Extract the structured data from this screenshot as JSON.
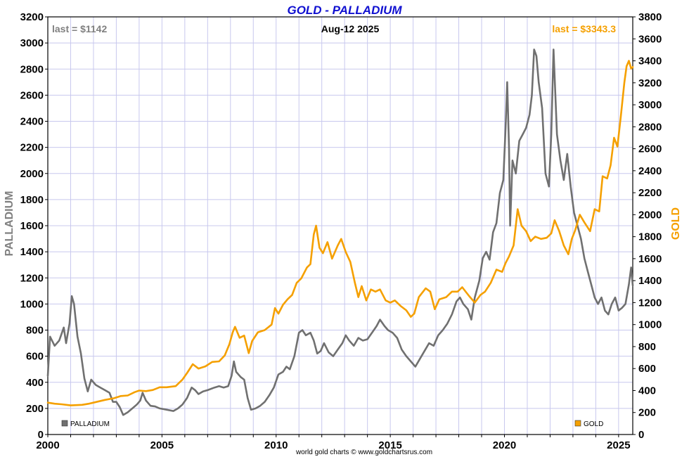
{
  "chart_data": {
    "type": "line",
    "title": "GOLD - PALLADIUM",
    "date_label": "Aug-12  2025",
    "credit": "world gold charts © www.goldchartsrus.com",
    "grid": true,
    "x_axis": {
      "range": [
        2000,
        2025.62
      ],
      "ticks": [
        {
          "value": 2000,
          "label": "2000"
        },
        {
          "value": 2005,
          "label": "2005"
        },
        {
          "value": 2010,
          "label": "2010"
        },
        {
          "value": 2015,
          "label": "2015"
        },
        {
          "value": 2020,
          "label": "2020"
        },
        {
          "value": 2025,
          "label": "2025"
        }
      ]
    },
    "y_left": {
      "label": "PALLADIUM",
      "range": [
        0,
        3200
      ],
      "ticks": [
        0,
        200,
        400,
        600,
        800,
        1000,
        1200,
        1400,
        1600,
        1800,
        2000,
        2200,
        2400,
        2600,
        2800,
        3000,
        3200
      ]
    },
    "y_right": {
      "label": "GOLD",
      "range": [
        0,
        3800
      ],
      "ticks": [
        0,
        200,
        400,
        600,
        800,
        1000,
        1200,
        1400,
        1600,
        1800,
        2000,
        2200,
        2400,
        2600,
        2800,
        3000,
        3200,
        3400,
        3600,
        3800
      ]
    },
    "series": [
      {
        "name": "PALLADIUM",
        "axis": "left",
        "color": "#707070",
        "last_label": "last = $1142",
        "points": [
          [
            2000.0,
            450
          ],
          [
            2000.1,
            750
          ],
          [
            2000.3,
            680
          ],
          [
            2000.5,
            720
          ],
          [
            2000.7,
            820
          ],
          [
            2000.8,
            700
          ],
          [
            2000.95,
            850
          ],
          [
            2001.05,
            1060
          ],
          [
            2001.15,
            1000
          ],
          [
            2001.3,
            750
          ],
          [
            2001.45,
            620
          ],
          [
            2001.6,
            430
          ],
          [
            2001.75,
            330
          ],
          [
            2001.9,
            420
          ],
          [
            2002.1,
            380
          ],
          [
            2002.3,
            360
          ],
          [
            2002.5,
            340
          ],
          [
            2002.7,
            320
          ],
          [
            2002.85,
            250
          ],
          [
            2003.0,
            250
          ],
          [
            2003.15,
            210
          ],
          [
            2003.3,
            150
          ],
          [
            2003.5,
            170
          ],
          [
            2003.7,
            200
          ],
          [
            2003.9,
            230
          ],
          [
            2004.05,
            260
          ],
          [
            2004.15,
            320
          ],
          [
            2004.3,
            260
          ],
          [
            2004.5,
            220
          ],
          [
            2004.7,
            215
          ],
          [
            2004.9,
            200
          ],
          [
            2005.2,
            190
          ],
          [
            2005.5,
            180
          ],
          [
            2005.7,
            200
          ],
          [
            2005.9,
            230
          ],
          [
            2006.1,
            280
          ],
          [
            2006.3,
            360
          ],
          [
            2006.45,
            340
          ],
          [
            2006.6,
            310
          ],
          [
            2006.8,
            330
          ],
          [
            2007.0,
            340
          ],
          [
            2007.3,
            360
          ],
          [
            2007.5,
            370
          ],
          [
            2007.7,
            360
          ],
          [
            2007.9,
            370
          ],
          [
            2008.05,
            450
          ],
          [
            2008.15,
            560
          ],
          [
            2008.25,
            480
          ],
          [
            2008.45,
            440
          ],
          [
            2008.6,
            420
          ],
          [
            2008.75,
            280
          ],
          [
            2008.9,
            190
          ],
          [
            2009.1,
            200
          ],
          [
            2009.3,
            220
          ],
          [
            2009.5,
            250
          ],
          [
            2009.7,
            300
          ],
          [
            2009.9,
            360
          ],
          [
            2010.1,
            460
          ],
          [
            2010.3,
            480
          ],
          [
            2010.45,
            520
          ],
          [
            2010.6,
            500
          ],
          [
            2010.8,
            600
          ],
          [
            2011.0,
            780
          ],
          [
            2011.15,
            800
          ],
          [
            2011.3,
            760
          ],
          [
            2011.5,
            780
          ],
          [
            2011.65,
            720
          ],
          [
            2011.8,
            620
          ],
          [
            2011.95,
            640
          ],
          [
            2012.1,
            700
          ],
          [
            2012.3,
            630
          ],
          [
            2012.5,
            600
          ],
          [
            2012.7,
            650
          ],
          [
            2012.9,
            700
          ],
          [
            2013.05,
            760
          ],
          [
            2013.2,
            720
          ],
          [
            2013.4,
            680
          ],
          [
            2013.6,
            740
          ],
          [
            2013.8,
            720
          ],
          [
            2014.0,
            730
          ],
          [
            2014.2,
            780
          ],
          [
            2014.4,
            830
          ],
          [
            2014.55,
            880
          ],
          [
            2014.75,
            830
          ],
          [
            2014.9,
            800
          ],
          [
            2015.1,
            780
          ],
          [
            2015.3,
            740
          ],
          [
            2015.5,
            650
          ],
          [
            2015.7,
            600
          ],
          [
            2015.9,
            560
          ],
          [
            2016.1,
            520
          ],
          [
            2016.3,
            580
          ],
          [
            2016.5,
            640
          ],
          [
            2016.7,
            700
          ],
          [
            2016.9,
            680
          ],
          [
            2017.1,
            760
          ],
          [
            2017.3,
            800
          ],
          [
            2017.5,
            850
          ],
          [
            2017.7,
            920
          ],
          [
            2017.9,
            1020
          ],
          [
            2018.05,
            1050
          ],
          [
            2018.2,
            1000
          ],
          [
            2018.4,
            960
          ],
          [
            2018.55,
            880
          ],
          [
            2018.7,
            1050
          ],
          [
            2018.9,
            1180
          ],
          [
            2019.05,
            1350
          ],
          [
            2019.2,
            1400
          ],
          [
            2019.35,
            1340
          ],
          [
            2019.5,
            1550
          ],
          [
            2019.65,
            1620
          ],
          [
            2019.8,
            1850
          ],
          [
            2019.95,
            1950
          ],
          [
            2020.05,
            2350
          ],
          [
            2020.12,
            2700
          ],
          [
            2020.2,
            2200
          ],
          [
            2020.25,
            1600
          ],
          [
            2020.35,
            2100
          ],
          [
            2020.5,
            2000
          ],
          [
            2020.65,
            2250
          ],
          [
            2020.8,
            2300
          ],
          [
            2020.95,
            2350
          ],
          [
            2021.1,
            2450
          ],
          [
            2021.2,
            2600
          ],
          [
            2021.3,
            2950
          ],
          [
            2021.4,
            2900
          ],
          [
            2021.5,
            2700
          ],
          [
            2021.65,
            2500
          ],
          [
            2021.8,
            2000
          ],
          [
            2021.95,
            1900
          ],
          [
            2022.05,
            2300
          ],
          [
            2022.15,
            2950
          ],
          [
            2022.3,
            2300
          ],
          [
            2022.45,
            2100
          ],
          [
            2022.6,
            1950
          ],
          [
            2022.75,
            2150
          ],
          [
            2022.9,
            1900
          ],
          [
            2023.05,
            1700
          ],
          [
            2023.2,
            1600
          ],
          [
            2023.35,
            1500
          ],
          [
            2023.5,
            1350
          ],
          [
            2023.65,
            1250
          ],
          [
            2023.8,
            1150
          ],
          [
            2023.95,
            1050
          ],
          [
            2024.1,
            1000
          ],
          [
            2024.25,
            1050
          ],
          [
            2024.4,
            950
          ],
          [
            2024.55,
            920
          ],
          [
            2024.7,
            1000
          ],
          [
            2024.85,
            1050
          ],
          [
            2025.0,
            950
          ],
          [
            2025.15,
            970
          ],
          [
            2025.3,
            1000
          ],
          [
            2025.45,
            1150
          ],
          [
            2025.55,
            1280
          ],
          [
            2025.62,
            1142
          ]
        ]
      },
      {
        "name": "GOLD",
        "axis": "right",
        "color": "#f5a000",
        "last_label": "last = $3343.3",
        "points": [
          [
            2000.0,
            290
          ],
          [
            2000.3,
            280
          ],
          [
            2000.6,
            275
          ],
          [
            2001.0,
            265
          ],
          [
            2001.5,
            270
          ],
          [
            2001.8,
            280
          ],
          [
            2002.0,
            290
          ],
          [
            2002.5,
            315
          ],
          [
            2002.9,
            330
          ],
          [
            2003.2,
            350
          ],
          [
            2003.5,
            355
          ],
          [
            2003.8,
            385
          ],
          [
            2004.0,
            400
          ],
          [
            2004.3,
            395
          ],
          [
            2004.6,
            405
          ],
          [
            2004.9,
            430
          ],
          [
            2005.2,
            430
          ],
          [
            2005.6,
            440
          ],
          [
            2005.9,
            500
          ],
          [
            2006.1,
            560
          ],
          [
            2006.35,
            640
          ],
          [
            2006.6,
            600
          ],
          [
            2006.9,
            620
          ],
          [
            2007.2,
            660
          ],
          [
            2007.5,
            665
          ],
          [
            2007.75,
            720
          ],
          [
            2007.95,
            820
          ],
          [
            2008.1,
            930
          ],
          [
            2008.2,
            980
          ],
          [
            2008.4,
            880
          ],
          [
            2008.6,
            900
          ],
          [
            2008.8,
            740
          ],
          [
            2008.95,
            850
          ],
          [
            2009.2,
            930
          ],
          [
            2009.5,
            950
          ],
          [
            2009.8,
            1000
          ],
          [
            2009.95,
            1150
          ],
          [
            2010.1,
            1100
          ],
          [
            2010.3,
            1180
          ],
          [
            2010.5,
            1230
          ],
          [
            2010.7,
            1270
          ],
          [
            2010.9,
            1380
          ],
          [
            2011.1,
            1420
          ],
          [
            2011.35,
            1520
          ],
          [
            2011.5,
            1550
          ],
          [
            2011.65,
            1820
          ],
          [
            2011.75,
            1900
          ],
          [
            2011.9,
            1700
          ],
          [
            2012.05,
            1650
          ],
          [
            2012.25,
            1750
          ],
          [
            2012.45,
            1600
          ],
          [
            2012.7,
            1720
          ],
          [
            2012.85,
            1780
          ],
          [
            2013.05,
            1660
          ],
          [
            2013.25,
            1570
          ],
          [
            2013.45,
            1380
          ],
          [
            2013.6,
            1250
          ],
          [
            2013.75,
            1350
          ],
          [
            2013.95,
            1220
          ],
          [
            2014.15,
            1320
          ],
          [
            2014.35,
            1300
          ],
          [
            2014.55,
            1320
          ],
          [
            2014.8,
            1220
          ],
          [
            2015.0,
            1200
          ],
          [
            2015.2,
            1220
          ],
          [
            2015.45,
            1170
          ],
          [
            2015.7,
            1130
          ],
          [
            2015.9,
            1070
          ],
          [
            2016.05,
            1100
          ],
          [
            2016.25,
            1250
          ],
          [
            2016.55,
            1330
          ],
          [
            2016.75,
            1300
          ],
          [
            2016.95,
            1140
          ],
          [
            2017.15,
            1230
          ],
          [
            2017.45,
            1250
          ],
          [
            2017.7,
            1300
          ],
          [
            2017.95,
            1300
          ],
          [
            2018.15,
            1340
          ],
          [
            2018.45,
            1260
          ],
          [
            2018.7,
            1200
          ],
          [
            2018.95,
            1270
          ],
          [
            2019.15,
            1300
          ],
          [
            2019.4,
            1380
          ],
          [
            2019.65,
            1500
          ],
          [
            2019.9,
            1480
          ],
          [
            2020.05,
            1560
          ],
          [
            2020.2,
            1620
          ],
          [
            2020.4,
            1720
          ],
          [
            2020.58,
            2050
          ],
          [
            2020.75,
            1900
          ],
          [
            2020.95,
            1850
          ],
          [
            2021.15,
            1760
          ],
          [
            2021.35,
            1800
          ],
          [
            2021.6,
            1780
          ],
          [
            2021.85,
            1790
          ],
          [
            2022.05,
            1830
          ],
          [
            2022.2,
            1950
          ],
          [
            2022.4,
            1850
          ],
          [
            2022.6,
            1720
          ],
          [
            2022.8,
            1640
          ],
          [
            2022.95,
            1780
          ],
          [
            2023.1,
            1860
          ],
          [
            2023.3,
            2000
          ],
          [
            2023.5,
            1930
          ],
          [
            2023.75,
            1850
          ],
          [
            2023.95,
            2050
          ],
          [
            2024.15,
            2030
          ],
          [
            2024.3,
            2350
          ],
          [
            2024.5,
            2330
          ],
          [
            2024.65,
            2450
          ],
          [
            2024.8,
            2700
          ],
          [
            2024.95,
            2620
          ],
          [
            2025.1,
            2900
          ],
          [
            2025.25,
            3200
          ],
          [
            2025.35,
            3350
          ],
          [
            2025.45,
            3400
          ],
          [
            2025.55,
            3330
          ],
          [
            2025.62,
            3343.3
          ]
        ]
      }
    ]
  }
}
